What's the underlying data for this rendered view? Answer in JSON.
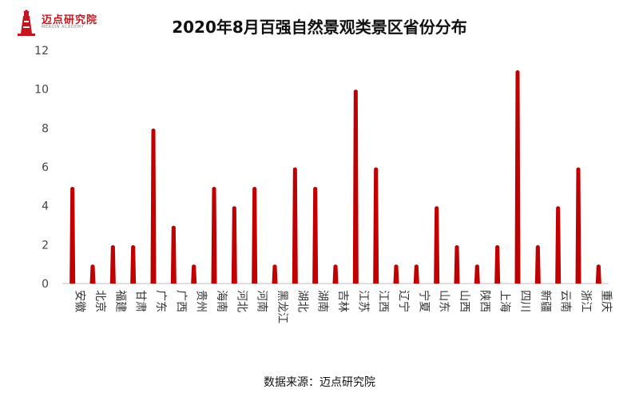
{
  "brand": {
    "name": "迈点研究院",
    "sub": "MEADIN ACADEMY",
    "accent_color": "#c4161c"
  },
  "footer": {
    "source": "数据来源：迈点研究院"
  },
  "chart_data": {
    "type": "bar",
    "title": "2020年8月百强自然景观类景区省份分布",
    "xlabel": "",
    "ylabel": "",
    "ylim": [
      0,
      12
    ],
    "yticks": [
      0,
      2,
      4,
      6,
      8,
      10,
      12
    ],
    "grid": false,
    "bar_color": "#c00000",
    "categories": [
      "安徽",
      "北京",
      "福建",
      "甘肃",
      "广东",
      "广西",
      "贵州",
      "海南",
      "河北",
      "河南",
      "黑龙江",
      "湖北",
      "湖南",
      "吉林",
      "江苏",
      "江西",
      "辽宁",
      "宁夏",
      "山东",
      "山西",
      "陕西",
      "上海",
      "四川",
      "新疆",
      "云南",
      "浙江",
      "重庆"
    ],
    "values": [
      5,
      1,
      2,
      2,
      8,
      3,
      1,
      5,
      4,
      5,
      1,
      6,
      5,
      1,
      10,
      6,
      1,
      1,
      4,
      2,
      1,
      2,
      11,
      2,
      4,
      6,
      1
    ]
  }
}
